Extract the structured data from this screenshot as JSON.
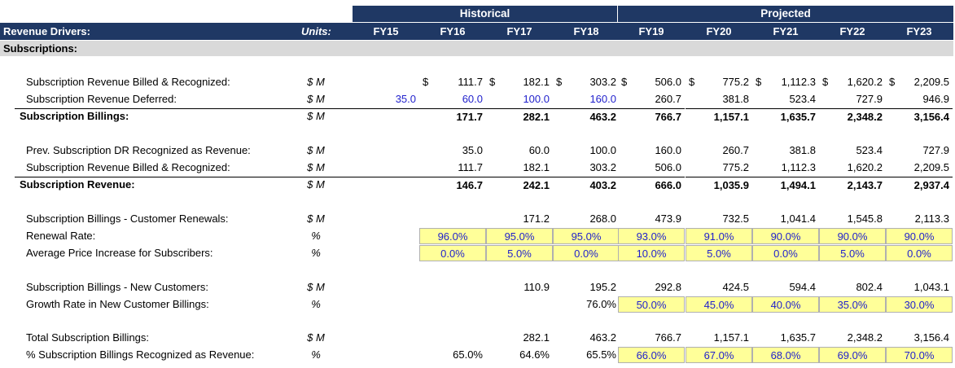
{
  "header": {
    "historical_label": "Historical",
    "projected_label": "Projected",
    "title": "Revenue Drivers:",
    "units_label": "Units:",
    "years": [
      "FY15",
      "FY16",
      "FY17",
      "FY18",
      "FY19",
      "FY20",
      "FY21",
      "FY22",
      "FY23"
    ]
  },
  "section_title": "Subscriptions:",
  "colors": {
    "header_bg": "#1f3864",
    "input_blue": "#1f1fcc",
    "highlight": "#ffff99"
  },
  "rows": [
    {
      "label": "Subscription Revenue Billed & Recognized:",
      "unit": "$ M",
      "values": [
        "",
        "111.7",
        "182.1",
        "303.2",
        "506.0",
        "775.2",
        "1,112.3",
        "1,620.2",
        "2,209.5"
      ],
      "dollar": [
        false,
        true,
        true,
        true,
        true,
        true,
        true,
        true,
        true
      ]
    },
    {
      "label": "Subscription Revenue Deferred:",
      "unit": "$ M",
      "values": [
        "35.0",
        "60.0",
        "100.0",
        "160.0",
        "260.7",
        "381.8",
        "523.4",
        "727.9",
        "946.9"
      ],
      "blue": [
        true,
        true,
        true,
        true,
        false,
        false,
        false,
        false,
        false
      ]
    },
    {
      "label": "Subscription Billings:",
      "unit": "$ M",
      "values": [
        "",
        "171.7",
        "282.1",
        "463.2",
        "766.7",
        "1,157.1",
        "1,635.7",
        "2,348.2",
        "3,156.4"
      ],
      "total": true
    },
    {
      "label": "Prev. Subscription DR Recognized as Revenue:",
      "unit": "$ M",
      "values": [
        "",
        "35.0",
        "60.0",
        "100.0",
        "160.0",
        "260.7",
        "381.8",
        "523.4",
        "727.9"
      ]
    },
    {
      "label": "Subscription Revenue Billed & Recognized:",
      "unit": "$ M",
      "values": [
        "",
        "111.7",
        "182.1",
        "303.2",
        "506.0",
        "775.2",
        "1,112.3",
        "1,620.2",
        "2,209.5"
      ]
    },
    {
      "label": "Subscription Revenue:",
      "unit": "$ M",
      "values": [
        "",
        "146.7",
        "242.1",
        "403.2",
        "666.0",
        "1,035.9",
        "1,494.1",
        "2,143.7",
        "2,937.4"
      ],
      "total": true
    },
    {
      "label": "Subscription Billings - Customer Renewals:",
      "unit": "$ M",
      "values": [
        "",
        "",
        "171.2",
        "268.0",
        "473.9",
        "732.5",
        "1,041.4",
        "1,545.8",
        "2,113.3"
      ]
    },
    {
      "label": "Renewal Rate:",
      "unit": "%",
      "values": [
        "",
        "96.0%",
        "95.0%",
        "95.0%",
        "93.0%",
        "91.0%",
        "90.0%",
        "90.0%",
        "90.0%"
      ],
      "input_from": 1
    },
    {
      "label": "Average Price Increase for Subscribers:",
      "unit": "%",
      "values": [
        "",
        "0.0%",
        "5.0%",
        "0.0%",
        "10.0%",
        "5.0%",
        "0.0%",
        "5.0%",
        "0.0%"
      ],
      "input_from": 1
    },
    {
      "label": "Subscription Billings - New Customers:",
      "unit": "$ M",
      "values": [
        "",
        "",
        "110.9",
        "195.2",
        "292.8",
        "424.5",
        "594.4",
        "802.4",
        "1,043.1"
      ]
    },
    {
      "label": "Growth Rate in New Customer Billings:",
      "unit": "%",
      "values": [
        "",
        "",
        "",
        "76.0%",
        "50.0%",
        "45.0%",
        "40.0%",
        "35.0%",
        "30.0%"
      ],
      "input_from": 4
    },
    {
      "label": "Total Subscription Billings:",
      "unit": "$ M",
      "values": [
        "",
        "",
        "282.1",
        "463.2",
        "766.7",
        "1,157.1",
        "1,635.7",
        "2,348.2",
        "3,156.4"
      ]
    },
    {
      "label": "% Subscription Billings Recognized as Revenue:",
      "unit": "%",
      "values": [
        "",
        "65.0%",
        "64.6%",
        "65.5%",
        "66.0%",
        "67.0%",
        "68.0%",
        "69.0%",
        "70.0%"
      ],
      "input_from": 4
    }
  ]
}
